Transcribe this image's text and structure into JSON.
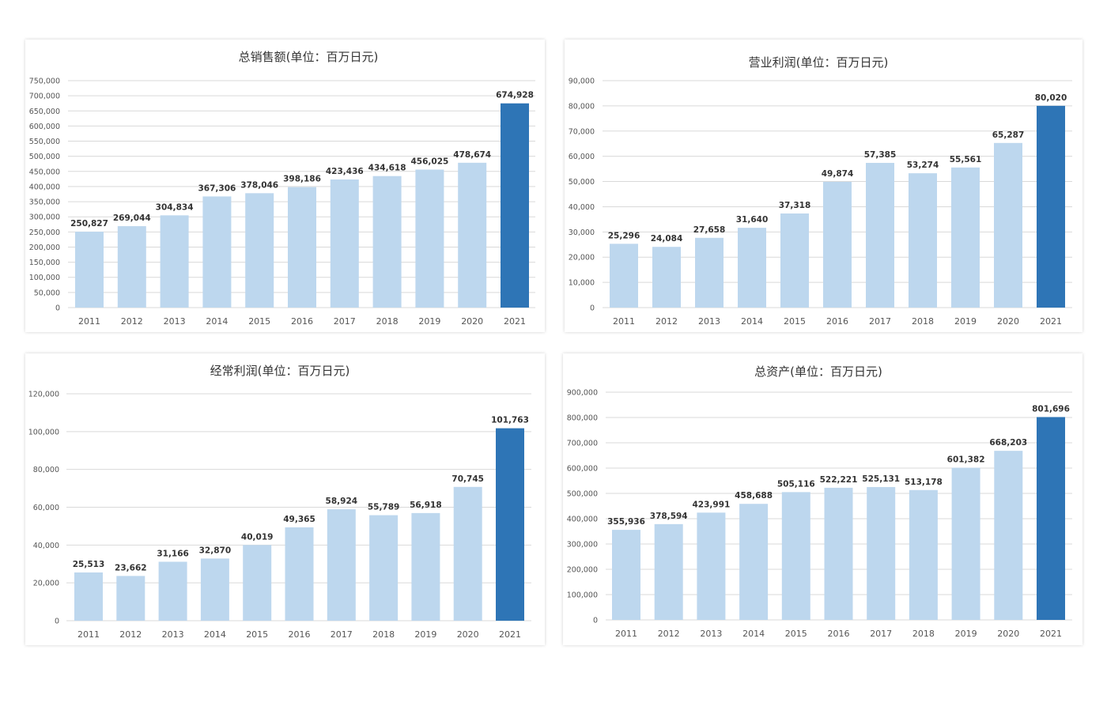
{
  "colors": {
    "bar": "#bdd7ee",
    "bar_highlight": "#2e75b6",
    "grid": "#d9d9d9"
  },
  "chart_data": [
    {
      "type": "bar",
      "title": "总销售额(单位：百万日元)",
      "categories": [
        "2011",
        "2012",
        "2013",
        "2014",
        "2015",
        "2016",
        "2017",
        "2018",
        "2019",
        "2020",
        "2021"
      ],
      "values": [
        250827,
        269044,
        304834,
        367306,
        378046,
        398186,
        423436,
        434618,
        456025,
        478674,
        674928
      ],
      "data_labels": [
        "250,827",
        "269,044",
        "304,834",
        "367,306",
        "378,046",
        "398,186",
        "423,436",
        "434,618",
        "456,025",
        "478,674",
        "674,928"
      ],
      "yticks": [
        "0",
        "50,000",
        "100,000",
        "150,000",
        "200,000",
        "250,000",
        "300,000",
        "350,000",
        "400,000",
        "450,000",
        "500,000",
        "550,000",
        "600,000",
        "650,000",
        "700,000",
        "750,000"
      ],
      "ylim": [
        0,
        750000
      ],
      "grid": true,
      "highlight_category": "2021"
    },
    {
      "type": "bar",
      "title": "营业利润(单位：百万日元)",
      "categories": [
        "2011",
        "2012",
        "2013",
        "2014",
        "2015",
        "2016",
        "2017",
        "2018",
        "2019",
        "2020",
        "2021"
      ],
      "values": [
        25296,
        24084,
        27658,
        31640,
        37318,
        49874,
        57385,
        53274,
        55561,
        65287,
        80020
      ],
      "data_labels": [
        "25,296",
        "24,084",
        "27,658",
        "31,640",
        "37,318",
        "49,874",
        "57,385",
        "53,274",
        "55,561",
        "65,287",
        "80,020"
      ],
      "yticks": [
        "0",
        "10,000",
        "20,000",
        "30,000",
        "40,000",
        "50,000",
        "60,000",
        "70,000",
        "80,000",
        "90,000"
      ],
      "ylim": [
        0,
        90000
      ],
      "grid": true,
      "highlight_category": "2021"
    },
    {
      "type": "bar",
      "title": "经常利润(单位：百万日元)",
      "categories": [
        "2011",
        "2012",
        "2013",
        "2014",
        "2015",
        "2016",
        "2017",
        "2018",
        "2019",
        "2020",
        "2021"
      ],
      "values": [
        25513,
        23662,
        31166,
        32870,
        40019,
        49365,
        58924,
        55789,
        56918,
        70745,
        101763
      ],
      "data_labels": [
        "25,513",
        "23,662",
        "31,166",
        "32,870",
        "40,019",
        "49,365",
        "58,924",
        "55,789",
        "56,918",
        "70,745",
        "101,763"
      ],
      "yticks": [
        "0",
        "20,000",
        "40,000",
        "60,000",
        "80,000",
        "100,000",
        "120,000"
      ],
      "ylim": [
        0,
        120000
      ],
      "grid": true,
      "highlight_category": "2021"
    },
    {
      "type": "bar",
      "title": "总资产(单位：百万日元)",
      "categories": [
        "2011",
        "2012",
        "2013",
        "2014",
        "2015",
        "2016",
        "2017",
        "2018",
        "2019",
        "2020",
        "2021"
      ],
      "values": [
        355936,
        378594,
        423991,
        458688,
        505116,
        522221,
        525131,
        513178,
        601382,
        668203,
        801696
      ],
      "data_labels": [
        "355,936",
        "378,594",
        "423,991",
        "458,688",
        "505,116",
        "522,221",
        "525,131",
        "513,178",
        "601,382",
        "668,203",
        "801,696"
      ],
      "yticks": [
        "0",
        "100,000",
        "200,000",
        "300,000",
        "400,000",
        "500,000",
        "600,000",
        "700,000",
        "800,000",
        "900,000"
      ],
      "ylim": [
        0,
        900000
      ],
      "grid": true,
      "highlight_category": "2021"
    }
  ]
}
